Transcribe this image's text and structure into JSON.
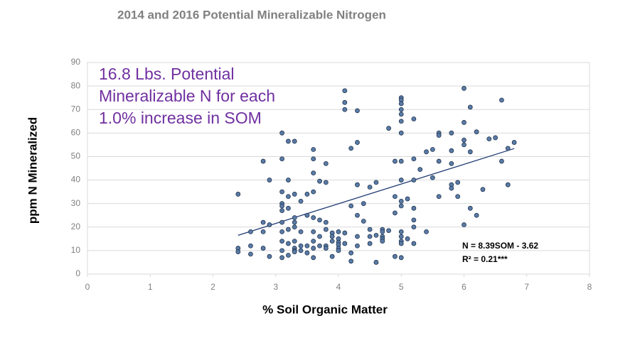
{
  "chart_data": {
    "type": "scatter",
    "title": "2014 and 2016 Potential Mineralizable Nitrogen",
    "x_label": "% Soil Organic Matter",
    "y_label": "ppm N Mineralized",
    "annotation": [
      "16.8 Lbs. Potential",
      "Mineralizable N for each",
      "1.0% increase in SOM"
    ],
    "equation": [
      "N = 8.39SOM - 3.62",
      "R² = 0.21***"
    ],
    "xlim": [
      0,
      8
    ],
    "xticks": [
      0,
      1,
      2,
      3,
      4,
      5,
      6,
      7,
      8
    ],
    "ylim": [
      0,
      90
    ],
    "yticks": [
      0,
      10,
      20,
      30,
      40,
      50,
      60,
      70,
      80,
      90
    ],
    "grid": true,
    "color": "#5b7ba6",
    "trendline": {
      "x": [
        2.4,
        6.8
      ],
      "y": [
        16.5,
        53.4
      ],
      "color": "#1f3b73"
    },
    "x": [
      2.4,
      2.4,
      2.4,
      2.6,
      2.6,
      2.6,
      2.8,
      2.8,
      2.8,
      2.8,
      2.9,
      2.9,
      2.9,
      3.1,
      3.1,
      3.1,
      3.1,
      3.1,
      3.1,
      3.1,
      3.1,
      3.1,
      3.1,
      3.1,
      3.2,
      3.2,
      3.2,
      3.2,
      3.2,
      3.2,
      3.2,
      3.3,
      3.3,
      3.3,
      3.3,
      3.3,
      3.3,
      3.3,
      3.3,
      3.3,
      3.4,
      3.4,
      3.4,
      3.4,
      3.5,
      3.5,
      3.5,
      3.5,
      3.6,
      3.6,
      3.6,
      3.6,
      3.6,
      3.6,
      3.6,
      3.6,
      3.6,
      3.7,
      3.7,
      3.7,
      3.7,
      3.8,
      3.8,
      3.8,
      3.8,
      3.8,
      3.8,
      3.9,
      3.9,
      3.9,
      3.9,
      4.0,
      4.0,
      4.0,
      4.0,
      4.0,
      4.0,
      4.1,
      4.1,
      4.1,
      4.1,
      4.1,
      4.2,
      4.2,
      4.2,
      4.2,
      4.3,
      4.3,
      4.3,
      4.3,
      4.3,
      4.3,
      4.4,
      4.4,
      4.5,
      4.5,
      4.5,
      4.5,
      4.6,
      4.6,
      4.6,
      4.7,
      4.7,
      4.7,
      4.7,
      4.7,
      4.8,
      4.8,
      4.9,
      4.9,
      4.9,
      4.9,
      5.0,
      5.0,
      5.0,
      5.0,
      5.0,
      5.0,
      5.0,
      5.0,
      5.0,
      5.0,
      5.0,
      5.0,
      5.0,
      5.0,
      5.0,
      5.0,
      5.1,
      5.1,
      5.2,
      5.2,
      5.2,
      5.2,
      5.2,
      5.2,
      5.2,
      5.3,
      5.4,
      5.4,
      5.5,
      5.5,
      5.6,
      5.6,
      5.6,
      5.6,
      5.8,
      5.8,
      5.8,
      5.8,
      5.8,
      5.9,
      5.9,
      6.0,
      6.0,
      6.0,
      6.0,
      6.0,
      6.1,
      6.1,
      6.1,
      6.2,
      6.2,
      6.3,
      6.4,
      6.5,
      6.6,
      6.6,
      6.7,
      6.7,
      6.8
    ],
    "y": [
      34,
      11,
      9.5,
      18,
      12,
      8.5,
      48,
      22,
      18,
      11,
      40,
      21,
      7.5,
      60,
      49,
      35,
      30,
      29,
      27,
      22,
      18,
      14,
      10,
      7,
      56.5,
      40,
      33,
      28,
      19,
      13,
      8,
      56.5,
      34,
      24,
      22,
      20,
      14,
      11,
      10,
      9.5,
      31,
      18,
      12,
      10,
      34,
      25,
      12,
      9,
      53,
      49,
      43,
      35,
      24,
      18,
      14,
      11,
      7,
      39.5,
      23,
      16,
      12,
      47,
      39,
      22,
      19,
      12,
      11,
      17.5,
      16,
      14,
      7.5,
      18,
      15,
      13.5,
      12.5,
      11,
      10,
      78,
      73,
      70,
      17.5,
      13,
      53.5,
      29,
      9,
      5.5,
      69.5,
      56,
      38,
      25,
      16,
      12,
      30,
      22.5,
      37,
      19,
      16,
      13,
      39,
      16.5,
      5,
      19,
      18,
      16,
      15,
      14,
      62,
      18.5,
      48,
      33,
      26,
      7.5,
      75,
      74,
      72.5,
      70,
      68,
      65,
      60,
      48,
      40,
      31,
      29,
      18,
      16,
      14,
      13,
      7,
      32,
      15,
      66,
      49,
      40,
      28,
      23,
      20,
      13,
      44.5,
      52,
      18,
      53,
      41,
      60,
      59,
      48,
      33,
      60,
      52.5,
      47,
      38,
      36.5,
      39,
      33,
      79,
      64.5,
      57,
      55,
      21,
      71,
      52,
      28,
      60.5,
      25,
      36,
      57.5,
      58,
      74,
      48,
      53.5,
      38,
      56
    ]
  }
}
